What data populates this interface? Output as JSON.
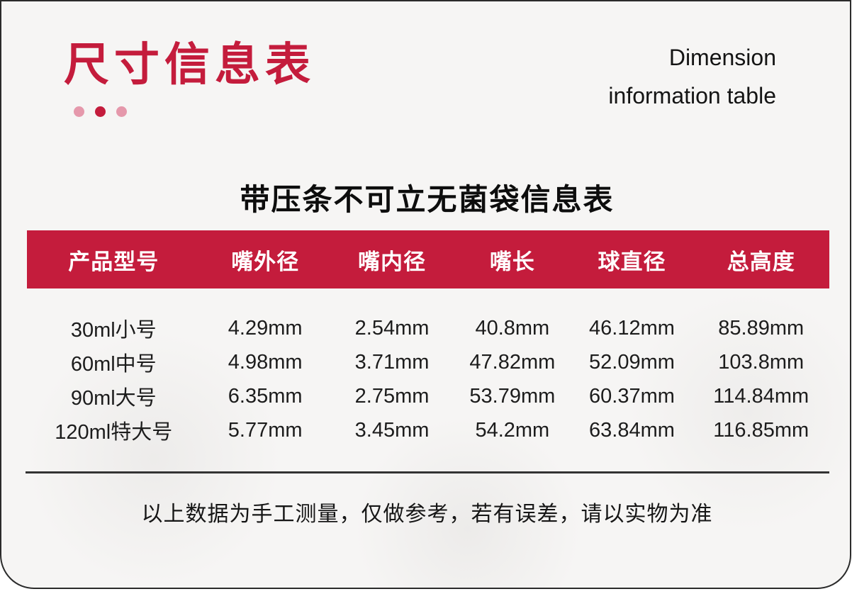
{
  "page": {
    "title": "尺寸信息表",
    "subtitle_line1": "Dimension",
    "subtitle_line2": "information table",
    "table_title": "带压条不可立无菌袋信息表",
    "footer_note": "以上数据为手工测量，仅做参考，若有误差，请以实物为准"
  },
  "colors": {
    "accent_red": "#c41c3c",
    "dot_pink": "#e598ab",
    "card_background": "#f6f5f4",
    "text_dark": "#1c1c1c",
    "header_text": "#ffffff"
  },
  "table": {
    "headers": [
      "产品型号",
      "嘴外径",
      "嘴内径",
      "嘴长",
      "球直径",
      "总高度"
    ],
    "rows": [
      [
        "30ml小号",
        "4.29mm",
        "2.54mm",
        "40.8mm",
        "46.12mm",
        "85.89mm"
      ],
      [
        "60ml中号",
        "4.98mm",
        "3.71mm",
        "47.82mm",
        "52.09mm",
        "103.8mm"
      ],
      [
        "90ml大号",
        "6.35mm",
        "2.75mm",
        "53.79mm",
        "60.37mm",
        "114.84mm"
      ],
      [
        "120ml特大号",
        "5.77mm",
        "3.45mm",
        "54.2mm",
        "63.84mm",
        "116.85mm"
      ]
    ],
    "unit": "mm"
  }
}
